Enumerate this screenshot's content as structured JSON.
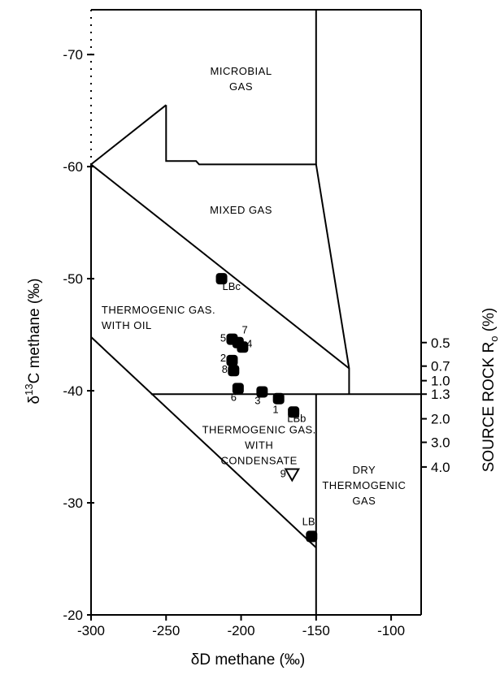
{
  "chart_data": {
    "type": "scatter",
    "title": "",
    "xlabel": "δD methane (‰)",
    "ylabel_prefix": "δ",
    "ylabel_sup": "13",
    "ylabel_suffix": "C methane (‰)",
    "y2label_prefix": "SOURCE ROCK R",
    "y2label_sub": "o",
    "y2label_suffix": " (%)",
    "xlim": [
      -300,
      -80
    ],
    "ylim": [
      -20,
      -74
    ],
    "x_ticks": [
      {
        "value": -300,
        "label": "-300"
      },
      {
        "value": -250,
        "label": "-250"
      },
      {
        "value": -200,
        "label": "-200"
      },
      {
        "value": -150,
        "label": "-150"
      },
      {
        "value": -100,
        "label": "-100"
      }
    ],
    "y_ticks": [
      {
        "value": -70,
        "label": "-70"
      },
      {
        "value": -60,
        "label": "-60"
      },
      {
        "value": -50,
        "label": "-50"
      },
      {
        "value": -40,
        "label": "-40"
      },
      {
        "value": -30,
        "label": "-30"
      },
      {
        "value": -20,
        "label": "-20"
      }
    ],
    "ro_ticks": [
      {
        "y": -44.3,
        "label": "0.5"
      },
      {
        "y": -42.2,
        "label": "0.7"
      },
      {
        "y": -40.9,
        "label": "1.0"
      },
      {
        "y": -39.7,
        "label": "1.3"
      },
      {
        "y": -37.5,
        "label": "2.0"
      },
      {
        "y": -35.4,
        "label": "3.0"
      },
      {
        "y": -33.2,
        "label": "4.0"
      }
    ],
    "regions": [
      {
        "name": "MICROBIAL GAS",
        "lines": [
          "MICROBIAL",
          "GAS"
        ],
        "x": -200,
        "y": -68.2
      },
      {
        "name": "MIXED GAS",
        "lines": [
          "MIXED GAS"
        ],
        "x": -200,
        "y": -55.8
      },
      {
        "name": "THERMOGENIC GAS WITH OIL",
        "lines": [
          "THERMOGENIC GAS.",
          "WITH OIL"
        ],
        "x": -293,
        "y": -46.9
      },
      {
        "name": "THERMOGENIC GAS WITH CONDENSATE",
        "lines": [
          "THERMOGENIC GAS.",
          "WITH",
          "CONDENSATE"
        ],
        "x": -188,
        "y": -36.2
      },
      {
        "name": "DRY THERMOGENIC GAS",
        "lines": [
          "DRY",
          "THERMOGENIC",
          "GAS"
        ],
        "x": -118,
        "y": -32.6
      }
    ],
    "boundaries": [
      {
        "name": "microbial-box",
        "points": [
          [
            -250,
            -65.5
          ],
          [
            -250,
            -60.5
          ],
          [
            -230,
            -60.5
          ],
          [
            -228,
            -60.2
          ],
          [
            -150,
            -60.2
          ],
          [
            -150,
            -74
          ]
        ]
      },
      {
        "name": "mixed-gas-upper",
        "points": [
          [
            -300,
            -60.2
          ],
          [
            -250,
            -65.5
          ]
        ]
      },
      {
        "name": "mixed-oil-boundary",
        "points": [
          [
            -300,
            -60.2
          ],
          [
            -128,
            -42.0
          ]
        ]
      },
      {
        "name": "right-diagonal",
        "points": [
          [
            -150,
            -60.2
          ],
          [
            -128,
            -42.0
          ],
          [
            -128,
            -39.7
          ]
        ]
      },
      {
        "name": "oil-condensate-boundary",
        "points": [
          [
            -300,
            -44.8
          ],
          [
            -150,
            -26.0
          ]
        ]
      },
      {
        "name": "condensate-top",
        "points": [
          [
            -260,
            -39.7
          ],
          [
            -80,
            -39.7
          ]
        ]
      },
      {
        "name": "condensate-dry-divider",
        "points": [
          [
            -150,
            -39.7
          ],
          [
            -150,
            -20
          ]
        ]
      }
    ],
    "dotted_boundaries": [
      {
        "name": "left-dotted-edge",
        "points": [
          [
            -300,
            -74
          ],
          [
            -300,
            -60.2
          ]
        ]
      }
    ],
    "points": [
      {
        "label": "LBc",
        "x": -213,
        "y": -50.0,
        "marker": "filled"
      },
      {
        "label": "5",
        "x": -206,
        "y": -44.6,
        "marker": "filled"
      },
      {
        "label": "7",
        "x": -202,
        "y": -44.3,
        "marker": "filled"
      },
      {
        "label": "4",
        "x": -199,
        "y": -43.9,
        "marker": "filled"
      },
      {
        "label": "2",
        "x": -206,
        "y": -42.7,
        "marker": "filled"
      },
      {
        "label": "8",
        "x": -205,
        "y": -41.8,
        "marker": "filled"
      },
      {
        "label": "6",
        "x": -202,
        "y": -40.2,
        "marker": "filled"
      },
      {
        "label": "3",
        "x": -186,
        "y": -39.9,
        "marker": "filled"
      },
      {
        "label": "1",
        "x": -175,
        "y": -39.3,
        "marker": "filled"
      },
      {
        "label": "LBb",
        "x": -165,
        "y": -38.1,
        "marker": "filled"
      },
      {
        "label": "9",
        "x": -166,
        "y": -32.5,
        "marker": "open-triangle"
      },
      {
        "label": "LB",
        "x": -153,
        "y": -27.0,
        "marker": "filled"
      }
    ],
    "point_labels": [
      {
        "label": "LBc",
        "x": -212.5,
        "y": -49.0,
        "anchor": "start"
      },
      {
        "label": "5",
        "x": -210,
        "y": -44.4,
        "anchor": "end"
      },
      {
        "label": "7",
        "x": -197.5,
        "y": -45.1,
        "anchor": "middle"
      },
      {
        "label": "4",
        "x": -194.5,
        "y": -43.9,
        "anchor": "middle"
      },
      {
        "label": "2",
        "x": -210,
        "y": -42.6,
        "anchor": "end"
      },
      {
        "label": "8",
        "x": -209,
        "y": -41.6,
        "anchor": "end"
      },
      {
        "label": "6",
        "x": -205,
        "y": -39.1,
        "anchor": "middle"
      },
      {
        "label": "3",
        "x": -189,
        "y": -38.8,
        "anchor": "middle"
      },
      {
        "label": "1",
        "x": -177,
        "y": -38.0,
        "anchor": "middle"
      },
      {
        "label": "LBb",
        "x": -163,
        "y": -37.2,
        "anchor": "middle"
      },
      {
        "label": "9",
        "x": -170,
        "y": -32.3,
        "anchor": "end"
      },
      {
        "label": "LB",
        "x": -155,
        "y": -28.0,
        "anchor": "middle"
      }
    ]
  }
}
